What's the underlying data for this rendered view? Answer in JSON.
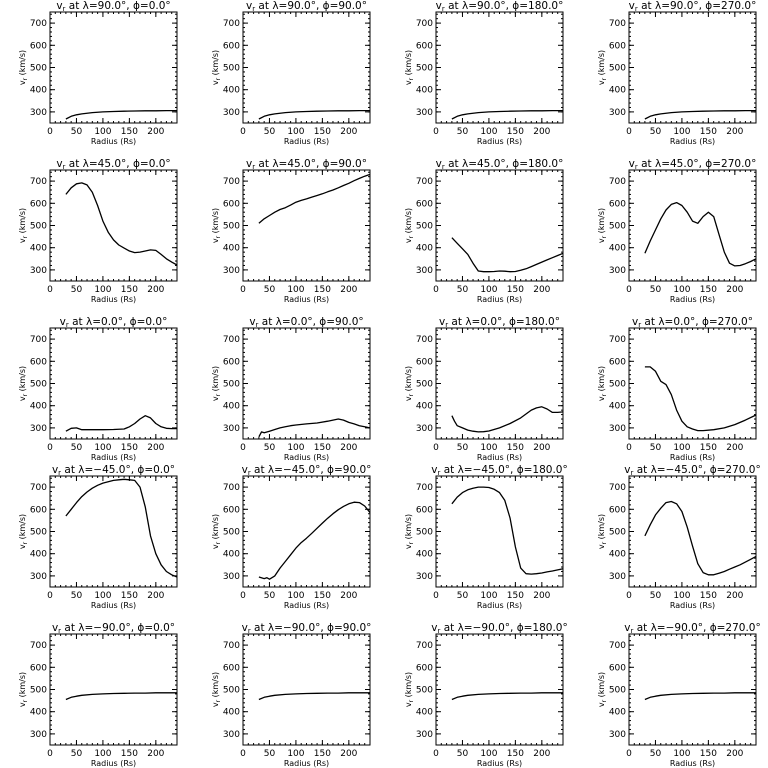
{
  "figure": {
    "lat_labels": [
      "90.0",
      "45.0",
      "0.0",
      "−45.0",
      "−90.0"
    ],
    "lon_labels": [
      "0.0",
      "90.0",
      "180.0",
      "270.0"
    ],
    "title_prefix": "v",
    "title_sub": "r",
    "title_mid": " at λ=",
    "title_phi": ", ϕ=",
    "title_deg": "°",
    "xlabel": "Radius (Rs)",
    "ylabel_prefix": "v",
    "ylabel_sub": "r",
    "ylabel_suffix": " (km/s)"
  },
  "chart_data": [
    {
      "type": "line",
      "lat": "90.0",
      "lon": "0.0",
      "xlim": [
        0,
        240
      ],
      "ylim": [
        250,
        750
      ],
      "xticks": [
        0,
        50,
        100,
        150,
        200
      ],
      "yticks": [
        300,
        400,
        500,
        600,
        700
      ],
      "x": [
        30,
        40,
        50,
        60,
        80,
        100,
        120,
        140,
        160,
        180,
        200,
        220,
        240
      ],
      "y": [
        268,
        280,
        287,
        291,
        297,
        300,
        302,
        303,
        304,
        305,
        305,
        306,
        306
      ]
    },
    {
      "type": "line",
      "lat": "90.0",
      "lon": "90.0",
      "xlim": [
        0,
        240
      ],
      "ylim": [
        250,
        750
      ],
      "xticks": [
        0,
        50,
        100,
        150,
        200
      ],
      "yticks": [
        300,
        400,
        500,
        600,
        700
      ],
      "x": [
        30,
        40,
        50,
        60,
        80,
        100,
        120,
        140,
        160,
        180,
        200,
        220,
        240
      ],
      "y": [
        268,
        280,
        287,
        291,
        297,
        300,
        302,
        303,
        304,
        305,
        305,
        306,
        306
      ]
    },
    {
      "type": "line",
      "lat": "90.0",
      "lon": "180.0",
      "xlim": [
        0,
        240
      ],
      "ylim": [
        250,
        750
      ],
      "xticks": [
        0,
        50,
        100,
        150,
        200
      ],
      "yticks": [
        300,
        400,
        500,
        600,
        700
      ],
      "x": [
        30,
        40,
        50,
        60,
        80,
        100,
        120,
        140,
        160,
        180,
        200,
        220,
        240
      ],
      "y": [
        268,
        280,
        287,
        291,
        297,
        300,
        302,
        303,
        304,
        305,
        305,
        306,
        306
      ]
    },
    {
      "type": "line",
      "lat": "90.0",
      "lon": "270.0",
      "xlim": [
        0,
        240
      ],
      "ylim": [
        250,
        750
      ],
      "xticks": [
        0,
        50,
        100,
        150,
        200
      ],
      "yticks": [
        300,
        400,
        500,
        600,
        700
      ],
      "x": [
        30,
        40,
        50,
        60,
        80,
        100,
        120,
        140,
        160,
        180,
        200,
        220,
        240
      ],
      "y": [
        268,
        280,
        287,
        291,
        297,
        300,
        302,
        303,
        304,
        305,
        305,
        306,
        306
      ]
    },
    {
      "type": "line",
      "lat": "45.0",
      "lon": "0.0",
      "xlim": [
        0,
        240
      ],
      "ylim": [
        250,
        750
      ],
      "xticks": [
        0,
        50,
        100,
        150,
        200
      ],
      "yticks": [
        300,
        400,
        500,
        600,
        700
      ],
      "x": [
        30,
        40,
        50,
        60,
        70,
        80,
        90,
        100,
        110,
        120,
        130,
        140,
        150,
        160,
        170,
        180,
        190,
        200,
        210,
        220,
        230,
        240
      ],
      "y": [
        640,
        670,
        688,
        692,
        683,
        650,
        590,
        520,
        470,
        435,
        412,
        398,
        385,
        378,
        380,
        385,
        390,
        388,
        370,
        350,
        335,
        322
      ]
    },
    {
      "type": "line",
      "lat": "45.0",
      "lon": "90.0",
      "xlim": [
        0,
        240
      ],
      "ylim": [
        250,
        750
      ],
      "xticks": [
        0,
        50,
        100,
        150,
        200
      ],
      "yticks": [
        300,
        400,
        500,
        600,
        700
      ],
      "x": [
        30,
        40,
        50,
        60,
        70,
        80,
        90,
        100,
        110,
        120,
        130,
        140,
        150,
        160,
        170,
        180,
        190,
        200,
        210,
        220,
        230,
        240
      ],
      "y": [
        510,
        530,
        545,
        560,
        572,
        580,
        592,
        605,
        613,
        620,
        628,
        635,
        643,
        652,
        660,
        670,
        680,
        690,
        702,
        712,
        722,
        730
      ]
    },
    {
      "type": "line",
      "lat": "45.0",
      "lon": "180.0",
      "xlim": [
        0,
        240
      ],
      "ylim": [
        250,
        750
      ],
      "xticks": [
        0,
        50,
        100,
        150,
        200
      ],
      "yticks": [
        300,
        400,
        500,
        600,
        700
      ],
      "x": [
        30,
        40,
        50,
        60,
        70,
        80,
        90,
        100,
        110,
        120,
        130,
        140,
        150,
        160,
        170,
        180,
        190,
        200,
        210,
        220,
        230,
        240
      ],
      "y": [
        445,
        420,
        395,
        370,
        330,
        295,
        292,
        292,
        293,
        295,
        294,
        292,
        293,
        298,
        305,
        315,
        325,
        335,
        345,
        355,
        365,
        375
      ]
    },
    {
      "type": "line",
      "lat": "45.0",
      "lon": "270.0",
      "xlim": [
        0,
        240
      ],
      "ylim": [
        250,
        750
      ],
      "xticks": [
        0,
        50,
        100,
        150,
        200
      ],
      "yticks": [
        300,
        400,
        500,
        600,
        700
      ],
      "x": [
        30,
        40,
        50,
        60,
        70,
        80,
        90,
        100,
        110,
        120,
        130,
        140,
        150,
        160,
        170,
        180,
        190,
        200,
        210,
        220,
        230,
        240
      ],
      "y": [
        375,
        430,
        480,
        530,
        570,
        595,
        603,
        590,
        560,
        520,
        510,
        540,
        560,
        540,
        460,
        380,
        330,
        318,
        320,
        328,
        338,
        350
      ]
    },
    {
      "type": "line",
      "lat": "0.0",
      "lon": "0.0",
      "xlim": [
        0,
        240
      ],
      "ylim": [
        250,
        750
      ],
      "xticks": [
        0,
        50,
        100,
        150,
        200
      ],
      "yticks": [
        300,
        400,
        500,
        600,
        700
      ],
      "x": [
        30,
        40,
        50,
        60,
        80,
        100,
        120,
        140,
        150,
        160,
        170,
        180,
        190,
        200,
        210,
        220,
        230,
        240
      ],
      "y": [
        285,
        298,
        300,
        292,
        292,
        292,
        293,
        295,
        305,
        320,
        340,
        355,
        345,
        320,
        305,
        298,
        297,
        297
      ]
    },
    {
      "type": "line",
      "lat": "0.0",
      "lon": "90.0",
      "xlim": [
        0,
        240
      ],
      "ylim": [
        250,
        750
      ],
      "xticks": [
        0,
        50,
        100,
        150,
        200
      ],
      "yticks": [
        300,
        400,
        500,
        600,
        700
      ],
      "x": [
        30,
        35,
        40,
        50,
        60,
        70,
        80,
        90,
        100,
        120,
        140,
        160,
        170,
        180,
        190,
        200,
        210,
        220,
        230,
        240
      ],
      "y": [
        260,
        282,
        278,
        285,
        293,
        300,
        305,
        310,
        313,
        318,
        322,
        330,
        335,
        340,
        335,
        325,
        318,
        310,
        305,
        300
      ]
    },
    {
      "type": "line",
      "lat": "0.0",
      "lon": "180.0",
      "xlim": [
        0,
        240
      ],
      "ylim": [
        250,
        750
      ],
      "xticks": [
        0,
        50,
        100,
        150,
        200
      ],
      "yticks": [
        300,
        400,
        500,
        600,
        700
      ],
      "x": [
        30,
        35,
        40,
        50,
        60,
        70,
        80,
        90,
        100,
        120,
        140,
        160,
        180,
        190,
        200,
        210,
        220,
        230,
        240
      ],
      "y": [
        355,
        330,
        310,
        300,
        290,
        285,
        282,
        283,
        286,
        300,
        320,
        345,
        380,
        390,
        395,
        385,
        370,
        370,
        372
      ]
    },
    {
      "type": "line",
      "lat": "0.0",
      "lon": "270.0",
      "xlim": [
        0,
        240
      ],
      "ylim": [
        250,
        750
      ],
      "xticks": [
        0,
        50,
        100,
        150,
        200
      ],
      "yticks": [
        300,
        400,
        500,
        600,
        700
      ],
      "x": [
        30,
        40,
        50,
        60,
        70,
        80,
        90,
        100,
        110,
        120,
        130,
        140,
        160,
        180,
        200,
        220,
        240
      ],
      "y": [
        575,
        575,
        555,
        510,
        495,
        450,
        380,
        330,
        305,
        295,
        288,
        288,
        292,
        300,
        315,
        335,
        358
      ]
    },
    {
      "type": "line",
      "lat": "−45.0",
      "lon": "0.0",
      "xlim": [
        0,
        240
      ],
      "ylim": [
        250,
        750
      ],
      "xticks": [
        0,
        50,
        100,
        150,
        200
      ],
      "yticks": [
        300,
        400,
        500,
        600,
        700
      ],
      "x": [
        30,
        40,
        50,
        60,
        70,
        80,
        90,
        100,
        110,
        120,
        130,
        140,
        150,
        160,
        170,
        180,
        190,
        200,
        210,
        220,
        230,
        240
      ],
      "y": [
        570,
        600,
        630,
        657,
        678,
        695,
        708,
        718,
        724,
        730,
        733,
        735,
        733,
        730,
        700,
        610,
        480,
        400,
        350,
        320,
        305,
        295
      ]
    },
    {
      "type": "line",
      "lat": "−45.0",
      "lon": "90.0",
      "xlim": [
        0,
        240
      ],
      "ylim": [
        250,
        750
      ],
      "xticks": [
        0,
        50,
        100,
        150,
        200
      ],
      "yticks": [
        300,
        400,
        500,
        600,
        700
      ],
      "x": [
        30,
        40,
        45,
        50,
        60,
        70,
        80,
        90,
        100,
        110,
        120,
        130,
        140,
        150,
        160,
        170,
        180,
        190,
        200,
        210,
        220,
        230,
        240
      ],
      "y": [
        295,
        288,
        292,
        285,
        300,
        335,
        365,
        395,
        425,
        450,
        470,
        492,
        515,
        538,
        560,
        580,
        598,
        613,
        625,
        632,
        630,
        615,
        585
      ]
    },
    {
      "type": "line",
      "lat": "−45.0",
      "lon": "180.0",
      "xlim": [
        0,
        240
      ],
      "ylim": [
        250,
        750
      ],
      "xticks": [
        0,
        50,
        100,
        150,
        200
      ],
      "yticks": [
        300,
        400,
        500,
        600,
        700
      ],
      "x": [
        30,
        40,
        50,
        60,
        70,
        80,
        90,
        100,
        110,
        120,
        130,
        140,
        150,
        160,
        170,
        180,
        190,
        200,
        210,
        220,
        230,
        240
      ],
      "y": [
        625,
        655,
        675,
        688,
        695,
        700,
        700,
        698,
        690,
        675,
        640,
        560,
        430,
        335,
        310,
        308,
        310,
        313,
        318,
        322,
        327,
        332
      ]
    },
    {
      "type": "line",
      "lat": "−45.0",
      "lon": "270.0",
      "xlim": [
        0,
        240
      ],
      "ylim": [
        250,
        750
      ],
      "xticks": [
        0,
        50,
        100,
        150,
        200
      ],
      "yticks": [
        300,
        400,
        500,
        600,
        700
      ],
      "x": [
        30,
        40,
        50,
        60,
        70,
        80,
        90,
        100,
        110,
        120,
        130,
        140,
        150,
        160,
        170,
        180,
        190,
        200,
        210,
        220,
        230,
        240
      ],
      "y": [
        480,
        530,
        575,
        605,
        630,
        635,
        625,
        590,
        520,
        435,
        355,
        315,
        305,
        305,
        312,
        320,
        330,
        340,
        350,
        362,
        375,
        388
      ]
    },
    {
      "type": "line",
      "lat": "−90.0",
      "lon": "0.0",
      "xlim": [
        0,
        240
      ],
      "ylim": [
        250,
        750
      ],
      "xticks": [
        0,
        50,
        100,
        150,
        200
      ],
      "yticks": [
        300,
        400,
        500,
        600,
        700
      ],
      "x": [
        30,
        40,
        50,
        60,
        80,
        100,
        120,
        140,
        160,
        180,
        200,
        220,
        240
      ],
      "y": [
        455,
        465,
        470,
        474,
        478,
        480,
        482,
        483,
        484,
        484,
        485,
        485,
        485
      ]
    },
    {
      "type": "line",
      "lat": "−90.0",
      "lon": "90.0",
      "xlim": [
        0,
        240
      ],
      "ylim": [
        250,
        750
      ],
      "xticks": [
        0,
        50,
        100,
        150,
        200
      ],
      "yticks": [
        300,
        400,
        500,
        600,
        700
      ],
      "x": [
        30,
        40,
        50,
        60,
        80,
        100,
        120,
        140,
        160,
        180,
        200,
        220,
        240
      ],
      "y": [
        455,
        465,
        470,
        474,
        478,
        480,
        482,
        483,
        484,
        484,
        485,
        485,
        485
      ]
    },
    {
      "type": "line",
      "lat": "−90.0",
      "lon": "180.0",
      "xlim": [
        0,
        240
      ],
      "ylim": [
        250,
        750
      ],
      "xticks": [
        0,
        50,
        100,
        150,
        200
      ],
      "yticks": [
        300,
        400,
        500,
        600,
        700
      ],
      "x": [
        30,
        40,
        50,
        60,
        80,
        100,
        120,
        140,
        160,
        180,
        200,
        220,
        240
      ],
      "y": [
        455,
        465,
        470,
        474,
        478,
        480,
        482,
        483,
        484,
        484,
        485,
        485,
        485
      ]
    },
    {
      "type": "line",
      "lat": "−90.0",
      "lon": "270.0",
      "xlim": [
        0,
        240
      ],
      "ylim": [
        250,
        750
      ],
      "xticks": [
        0,
        50,
        100,
        150,
        200
      ],
      "yticks": [
        300,
        400,
        500,
        600,
        700
      ],
      "x": [
        30,
        40,
        50,
        60,
        80,
        100,
        120,
        140,
        160,
        180,
        200,
        220,
        240
      ],
      "y": [
        455,
        465,
        470,
        474,
        478,
        480,
        482,
        483,
        484,
        484,
        485,
        485,
        485
      ]
    }
  ]
}
